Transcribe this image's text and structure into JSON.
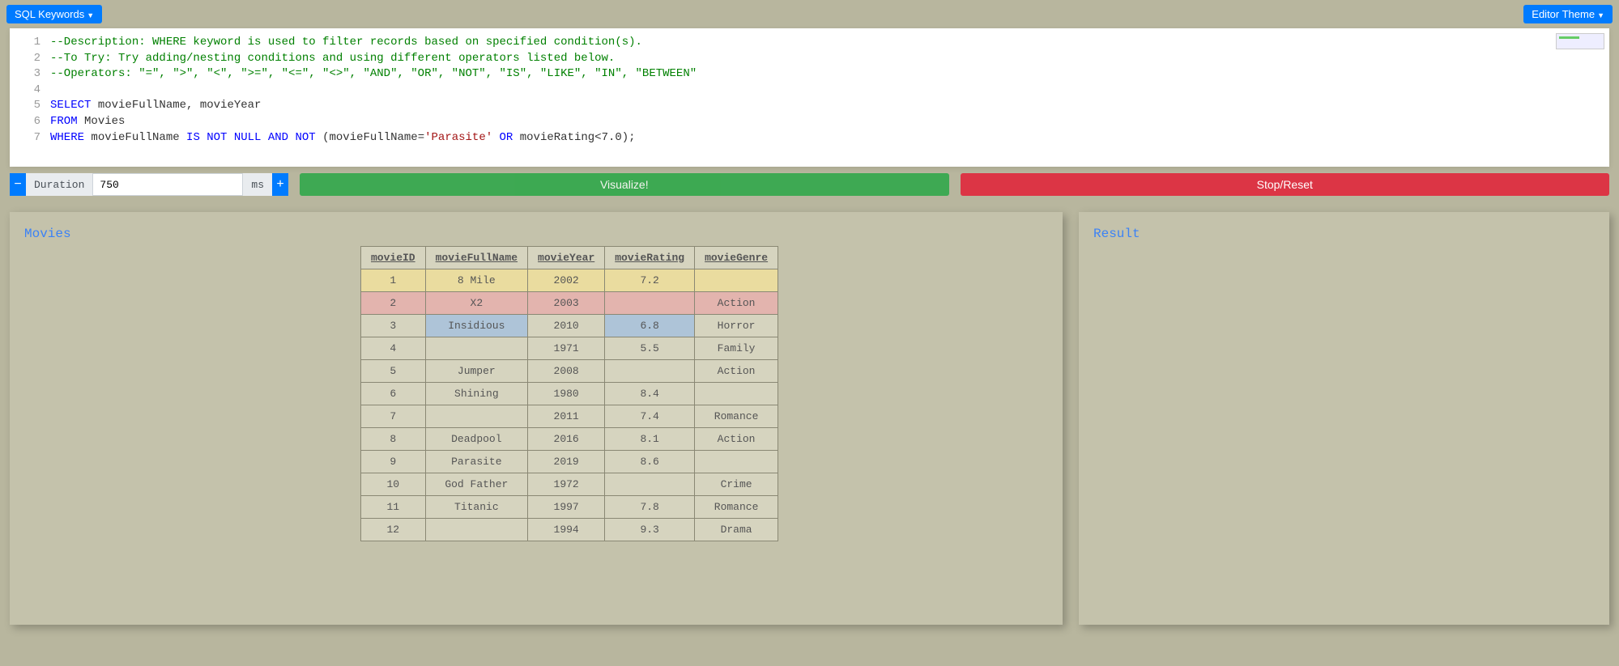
{
  "topbar": {
    "sql_keywords": "SQL Keywords",
    "editor_theme": "Editor Theme"
  },
  "code_lines": [
    {
      "n": 1,
      "segs": [
        {
          "t": "--Description: WHERE keyword is used to filter records based on specified condition(s).",
          "c": "tok-comment"
        }
      ]
    },
    {
      "n": 2,
      "segs": [
        {
          "t": "--To Try: Try adding/nesting conditions and using different operators listed below.",
          "c": "tok-comment"
        }
      ]
    },
    {
      "n": 3,
      "segs": [
        {
          "t": "--Operators: \"=\", \">\", \"<\", \">=\", \"<=\", \"<>\", \"AND\", \"OR\", \"NOT\", \"IS\", \"LIKE\", \"IN\", \"BETWEEN\"",
          "c": "tok-comment"
        }
      ]
    },
    {
      "n": 4,
      "segs": [
        {
          "t": "",
          "c": ""
        }
      ]
    },
    {
      "n": 5,
      "segs": [
        {
          "t": "SELECT",
          "c": "tok-keyword"
        },
        {
          "t": " movieFullName, movieYear",
          "c": "tok-ident"
        }
      ]
    },
    {
      "n": 6,
      "segs": [
        {
          "t": "FROM",
          "c": "tok-keyword"
        },
        {
          "t": " Movies",
          "c": "tok-ident"
        }
      ]
    },
    {
      "n": 7,
      "segs": [
        {
          "t": "WHERE",
          "c": "tok-keyword"
        },
        {
          "t": " movieFullName ",
          "c": "tok-ident"
        },
        {
          "t": "IS NOT NULL AND NOT",
          "c": "tok-keyword"
        },
        {
          "t": " (movieFullName=",
          "c": "tok-ident"
        },
        {
          "t": "'Parasite'",
          "c": "tok-string"
        },
        {
          "t": " ",
          "c": ""
        },
        {
          "t": "OR",
          "c": "tok-keyword"
        },
        {
          "t": " movieRating<",
          "c": "tok-ident"
        },
        {
          "t": "7.0",
          "c": "tok-number"
        },
        {
          "t": ");",
          "c": "tok-ident"
        }
      ]
    }
  ],
  "controls": {
    "duration_label": "Duration",
    "duration_value": "750",
    "duration_unit": "ms",
    "minus": "−",
    "plus": "+",
    "visualize": "Visualize!",
    "reset": "Stop/Reset"
  },
  "table": {
    "title": "Movies",
    "columns": [
      "movieID",
      "movieFullName",
      "movieYear",
      "movieRating",
      "movieGenre"
    ],
    "rows": [
      {
        "cells": [
          "1",
          "8 Mile",
          "2002",
          "7.2",
          ""
        ],
        "row_class": "hl-yellow"
      },
      {
        "cells": [
          "2",
          "X2",
          "2003",
          "",
          "Action"
        ],
        "row_class": "hl-pink"
      },
      {
        "cells": [
          "3",
          "Insidious",
          "2010",
          "6.8",
          "Horror"
        ],
        "row_class": "",
        "blue_cells": [
          1,
          3
        ]
      },
      {
        "cells": [
          "4",
          "",
          "1971",
          "5.5",
          "Family"
        ],
        "row_class": ""
      },
      {
        "cells": [
          "5",
          "Jumper",
          "2008",
          "",
          "Action"
        ],
        "row_class": ""
      },
      {
        "cells": [
          "6",
          "Shining",
          "1980",
          "8.4",
          ""
        ],
        "row_class": ""
      },
      {
        "cells": [
          "7",
          "",
          "2011",
          "7.4",
          "Romance"
        ],
        "row_class": ""
      },
      {
        "cells": [
          "8",
          "Deadpool",
          "2016",
          "8.1",
          "Action"
        ],
        "row_class": ""
      },
      {
        "cells": [
          "9",
          "Parasite",
          "2019",
          "8.6",
          ""
        ],
        "row_class": ""
      },
      {
        "cells": [
          "10",
          "God Father",
          "1972",
          "",
          "Crime"
        ],
        "row_class": ""
      },
      {
        "cells": [
          "11",
          "Titanic",
          "1997",
          "7.8",
          "Romance"
        ],
        "row_class": ""
      },
      {
        "cells": [
          "12",
          "",
          "1994",
          "9.3",
          "Drama"
        ],
        "row_class": ""
      }
    ]
  },
  "result": {
    "title": "Result"
  },
  "colors": {
    "page_bg": "#b8b69e",
    "panel_bg": "#c4c2ab",
    "accent_blue": "#007bff",
    "green": "#28a745",
    "red": "#dc3545",
    "hl_yellow": "#eadc9f",
    "hl_pink": "#e3b4ae",
    "hl_blue": "#aec4d8"
  }
}
